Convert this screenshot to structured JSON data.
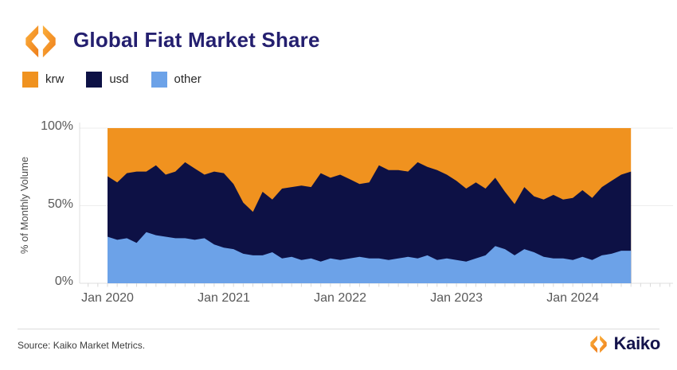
{
  "header": {
    "logo_icon": "kaiko-diamond-icon"
  },
  "chart_data": {
    "type": "area",
    "stacked": true,
    "title": "Global Fiat Market Share",
    "ylabel": "% of Monthly Volume",
    "ylim": [
      0,
      100
    ],
    "grid": true,
    "legend_position": "top-left",
    "colors": {
      "krw": "#F0921F",
      "usd": "#0D1145",
      "other": "#6CA2E8"
    },
    "y_ticks": [
      {
        "label": "100%",
        "value": 100
      },
      {
        "label": "50%",
        "value": 50
      },
      {
        "label": "0%",
        "value": 0
      }
    ],
    "x_tick_labels": [
      {
        "label": "Jan 2020",
        "month_index": 0
      },
      {
        "label": "Jan 2021",
        "month_index": 12
      },
      {
        "label": "Jan 2022",
        "month_index": 24
      },
      {
        "label": "Jan 2023",
        "month_index": 36
      },
      {
        "label": "Jan 2024",
        "month_index": 48
      }
    ],
    "months": [
      "2020-01",
      "2020-02",
      "2020-03",
      "2020-04",
      "2020-05",
      "2020-06",
      "2020-07",
      "2020-08",
      "2020-09",
      "2020-10",
      "2020-11",
      "2020-12",
      "2021-01",
      "2021-02",
      "2021-03",
      "2021-04",
      "2021-05",
      "2021-06",
      "2021-07",
      "2021-08",
      "2021-09",
      "2021-10",
      "2021-11",
      "2021-12",
      "2022-01",
      "2022-02",
      "2022-03",
      "2022-04",
      "2022-05",
      "2022-06",
      "2022-07",
      "2022-08",
      "2022-09",
      "2022-10",
      "2022-11",
      "2022-12",
      "2023-01",
      "2023-02",
      "2023-03",
      "2023-04",
      "2023-05",
      "2023-06",
      "2023-07",
      "2023-08",
      "2023-09",
      "2023-10",
      "2023-11",
      "2023-12",
      "2024-01",
      "2024-02",
      "2024-03",
      "2024-04",
      "2024-05",
      "2024-06",
      "2024-07"
    ],
    "stack_order_bottom_to_top": [
      "other",
      "usd",
      "krw"
    ],
    "series": [
      {
        "name": "krw",
        "color": "#F0921F",
        "values": [
          31,
          35,
          29,
          28,
          28,
          24,
          30,
          28,
          22,
          26,
          30,
          28,
          29,
          36,
          48,
          54,
          41,
          46,
          39,
          38,
          37,
          38,
          29,
          32,
          30,
          33,
          36,
          35,
          24,
          27,
          27,
          28,
          22,
          25,
          27,
          30,
          34,
          39,
          35,
          39,
          32,
          41,
          49,
          38,
          44,
          46,
          43,
          46,
          45,
          40,
          45,
          38,
          34,
          30,
          28
        ]
      },
      {
        "name": "usd",
        "color": "#0D1145",
        "values": [
          39,
          37,
          42,
          46,
          39,
          45,
          40,
          43,
          49,
          46,
          41,
          47,
          48,
          42,
          33,
          28,
          41,
          34,
          45,
          45,
          48,
          46,
          57,
          52,
          55,
          51,
          47,
          49,
          60,
          58,
          57,
          55,
          62,
          57,
          58,
          54,
          51,
          47,
          49,
          43,
          44,
          37,
          33,
          40,
          36,
          37,
          41,
          38,
          40,
          43,
          40,
          44,
          47,
          49,
          51
        ]
      },
      {
        "name": "other",
        "color": "#6CA2E8",
        "values": [
          30,
          28,
          29,
          26,
          33,
          31,
          30,
          29,
          29,
          28,
          29,
          25,
          23,
          22,
          19,
          18,
          18,
          20,
          16,
          17,
          15,
          16,
          14,
          16,
          15,
          16,
          17,
          16,
          16,
          15,
          16,
          17,
          16,
          18,
          15,
          16,
          15,
          14,
          16,
          18,
          24,
          22,
          18,
          22,
          20,
          17,
          16,
          16,
          15,
          17,
          15,
          18,
          19,
          21,
          21
        ]
      }
    ]
  },
  "footer": {
    "source": "Source: Kaiko Market Metrics.",
    "brand": "Kaiko"
  }
}
